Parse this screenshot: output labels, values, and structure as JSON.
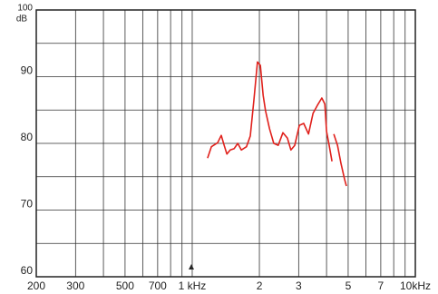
{
  "chart_data": {
    "type": "line",
    "y_label": "dB",
    "x": [
      1172,
      1219,
      1300,
      1350,
      1390,
      1430,
      1480,
      1540,
      1600,
      1660,
      1750,
      1820,
      1890,
      1960,
      2020,
      2080,
      2130,
      2220,
      2320,
      2430,
      2550,
      2670,
      2770,
      2880,
      3020,
      3160,
      3320,
      3480,
      3640,
      3810,
      3930,
      4000,
      4110,
      4230,
      4270,
      4310,
      4480,
      4640,
      4820,
      4910
    ],
    "series": [
      {
        "color": "#e0201b",
        "values": [
          77.8,
          79.5,
          80.1,
          81.2,
          79.7,
          78.4,
          79.0,
          79.2,
          80.0,
          79.0,
          79.5,
          81.1,
          86.5,
          92.2,
          91.7,
          87.2,
          84.9,
          82.2,
          80.0,
          79.7,
          81.6,
          80.8,
          79.0,
          79.7,
          82.7,
          83.0,
          81.4,
          84.5,
          85.7,
          86.8,
          85.9,
          81.8,
          79.7,
          77.3,
          null,
          81.4,
          79.7,
          77.0,
          74.6,
          73.6
        ]
      }
    ],
    "xscale": "log",
    "xlim": [
      200,
      10000
    ],
    "xticks": [
      200,
      300,
      500,
      700,
      {
        "value": 1000,
        "label": "1 kHz"
      },
      {
        "value": 2000,
        "label": "2"
      },
      {
        "value": 3000,
        "label": "3"
      },
      {
        "value": 5000,
        "label": "5"
      },
      {
        "value": 7000,
        "label": "7"
      },
      {
        "value": 10000,
        "label": "10kHz"
      }
    ],
    "x_minor_ticks": [
      400,
      600,
      800,
      900,
      4000,
      6000,
      8000,
      9000
    ],
    "ylim": [
      60,
      100
    ],
    "yticks": [
      60,
      70,
      80,
      90,
      100
    ],
    "y_minor_ticks": [
      65,
      75,
      85,
      95
    ],
    "grid": true
  }
}
